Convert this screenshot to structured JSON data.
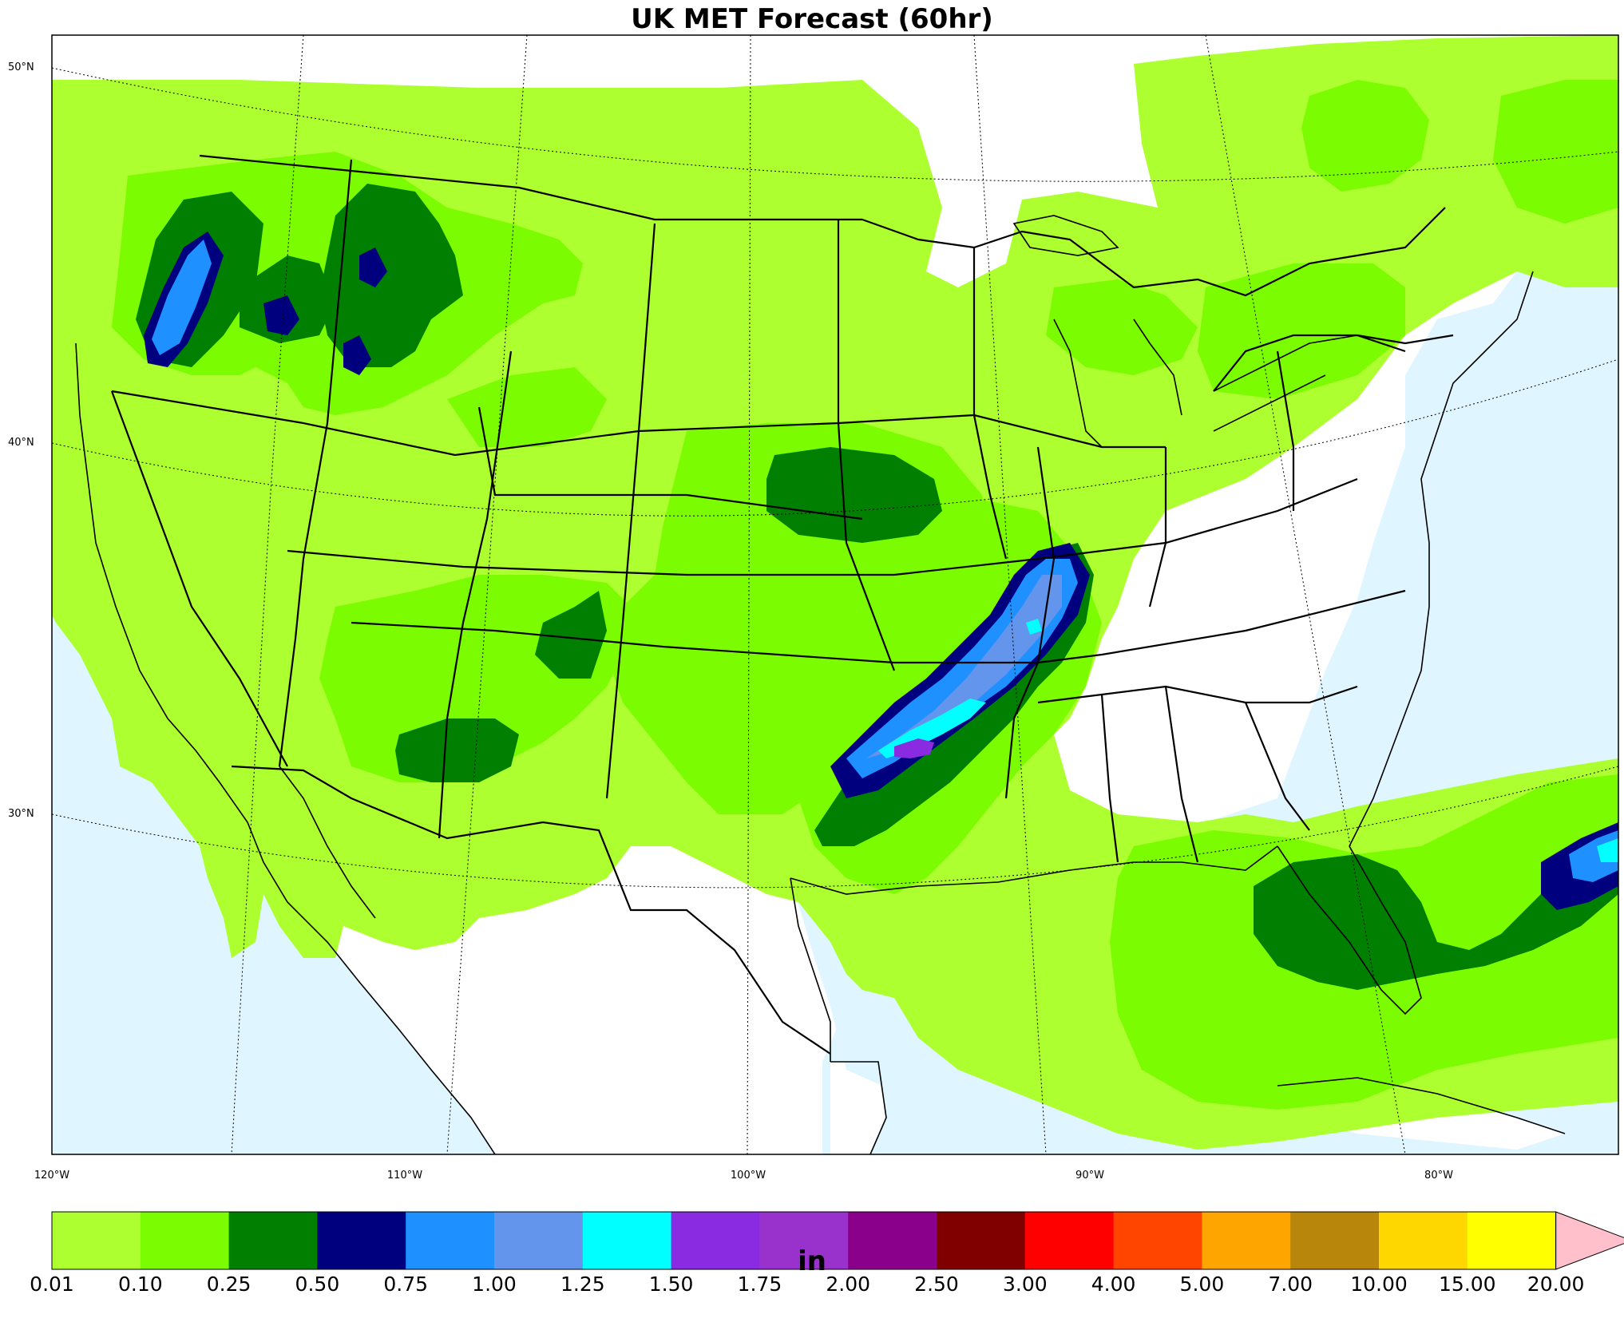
{
  "title": "UK MET Forecast (60hr)",
  "lat_labels": [
    "50°N",
    "40°N",
    "30°N"
  ],
  "lon_labels": [
    "120°W",
    "110°W",
    "100°W",
    "90°W",
    "80°W"
  ],
  "colorbar": {
    "units": "in",
    "ticks": [
      "0.01",
      "0.10",
      "0.25",
      "0.50",
      "0.75",
      "1.00",
      "1.25",
      "1.50",
      "1.75",
      "2.00",
      "2.50",
      "3.00",
      "4.00",
      "5.00",
      "7.00",
      "10.00",
      "15.00",
      "20.00"
    ],
    "colors": [
      "#adff2f",
      "#7cfc00",
      "#007f00",
      "#00007f",
      "#1e90ff",
      "#6495ed",
      "#00ffff",
      "#8a2be2",
      "#9932cc",
      "#8b008b",
      "#800000",
      "#ff0000",
      "#ff4500",
      "#ffa500",
      "#b8860b",
      "#ffd700",
      "#ffff00"
    ],
    "over_color": "#ffc0cb"
  },
  "colors": {
    "ocean": "#dff5ff",
    "land": "#ffffff"
  }
}
